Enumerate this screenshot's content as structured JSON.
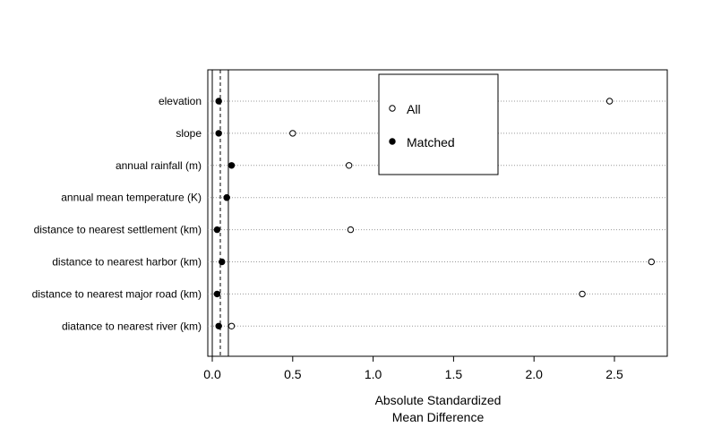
{
  "chart_data": {
    "type": "scatter",
    "title": "",
    "xlabel_lines": [
      "Absolute Standardized",
      "Mean Difference"
    ],
    "ylabel": "",
    "xlim": [
      -0.02,
      2.83
    ],
    "xticks": [
      0.0,
      0.5,
      1.0,
      1.5,
      2.0,
      2.5
    ],
    "xtick_labels": [
      "0.0",
      "0.5",
      "1.0",
      "1.5",
      "2.0",
      "2.5"
    ],
    "reference_lines": {
      "solid": [
        0.0,
        0.1
      ],
      "dashed": [
        0.05
      ]
    },
    "grid": "dotted horizontal per category",
    "categories": [
      "elevation",
      "slope",
      "annual rainfall (m)",
      "annual mean temperature (K)",
      "distance to nearest settlement (km)",
      "distance to nearest harbor (km)",
      "distance to nearest major road (km)",
      "diatance to nearest river (km)"
    ],
    "series": [
      {
        "name": "All",
        "marker": "open-circle",
        "values": [
          2.47,
          0.5,
          0.85,
          0.09,
          0.86,
          2.73,
          2.3,
          0.12
        ]
      },
      {
        "name": "Matched",
        "marker": "filled-circle",
        "values": [
          0.04,
          0.04,
          0.12,
          0.09,
          0.03,
          0.06,
          0.03,
          0.04
        ]
      }
    ],
    "legend": {
      "position": "top-center",
      "entries": [
        "All",
        "Matched"
      ]
    }
  }
}
